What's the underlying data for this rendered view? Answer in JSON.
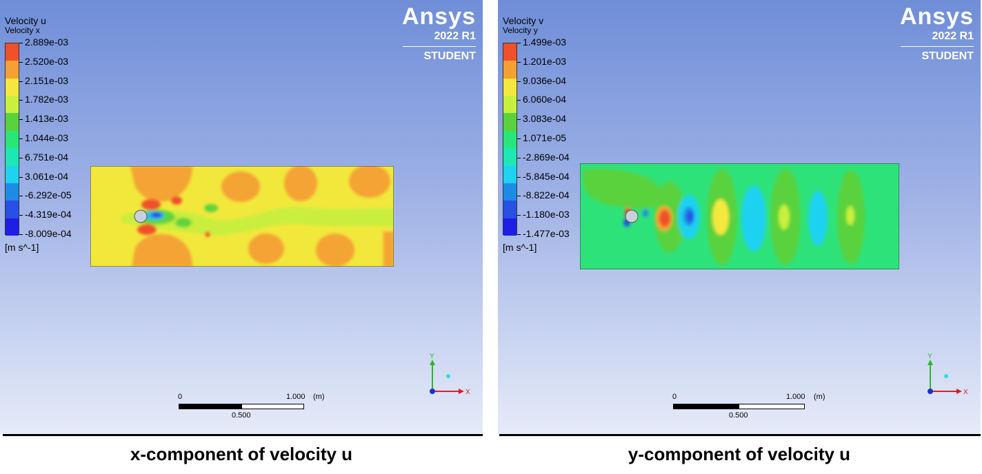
{
  "panels": [
    {
      "brand": {
        "logo": "Ansys",
        "version": "2022 R1",
        "edition": "STUDENT"
      },
      "legend": {
        "title": "Velocity u",
        "subtitle": "Velocity x",
        "ticks": [
          "2.889e-03",
          "2.520e-03",
          "2.151e-03",
          "1.782e-03",
          "1.413e-03",
          "1.044e-03",
          "6.751e-04",
          "3.061e-04",
          "-6.292e-05",
          "-4.319e-04",
          "-8.009e-04"
        ],
        "units": "[m s^-1]"
      },
      "scale": {
        "zero": "0",
        "max": "1.000",
        "unit": "(m)",
        "mid": "0.500"
      },
      "axes": {
        "y": "Y",
        "x": "X"
      },
      "caption": "x-component of velocity u"
    },
    {
      "brand": {
        "logo": "Ansys",
        "version": "2022 R1",
        "edition": "STUDENT"
      },
      "legend": {
        "title": "Velocity v",
        "subtitle": "Velocity y",
        "ticks": [
          "1.499e-03",
          "1.201e-03",
          "9.036e-04",
          "6.060e-04",
          "3.083e-04",
          "1.071e-05",
          "-2.869e-04",
          "-5.845e-04",
          "-8.822e-04",
          "-1.180e-03",
          "-1.477e-03"
        ],
        "units": "[m s^-1]"
      },
      "scale": {
        "zero": "0",
        "max": "1.000",
        "unit": "(m)",
        "mid": "0.500"
      },
      "axes": {
        "y": "Y",
        "x": "X"
      },
      "caption": "y-component of velocity u"
    }
  ],
  "colormap": [
    "#f0502a",
    "#f5a033",
    "#f5e83c",
    "#c8f03c",
    "#5ad23c",
    "#28e678",
    "#1ee6b4",
    "#1ed2f0",
    "#1e8ce6",
    "#2850e6",
    "#1e1ee6"
  ]
}
